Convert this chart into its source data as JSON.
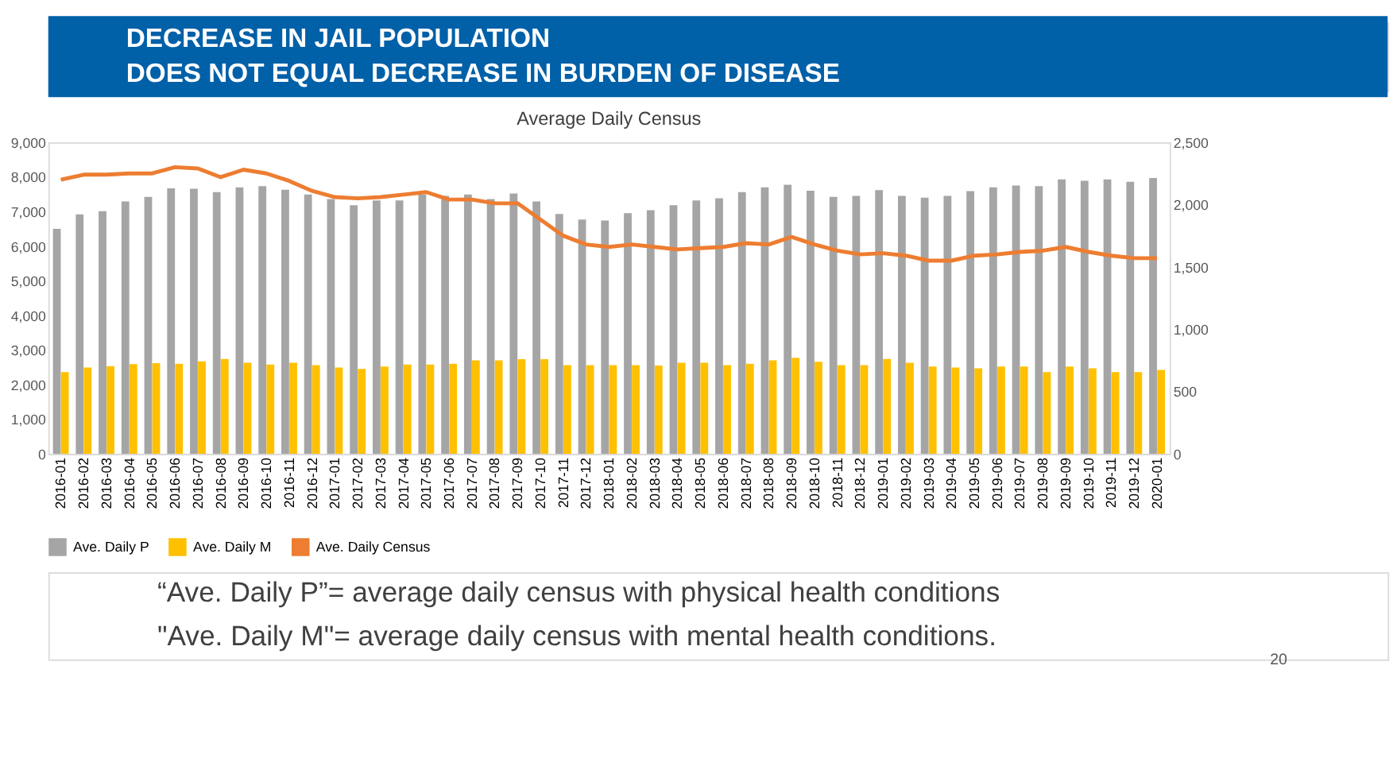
{
  "chart_data": {
    "type": "bar",
    "title": "DECREASE IN JAIL POPULATION\nDOES NOT EQUAL DECREASE IN BURDEN OF DISEASE",
    "subtitle": "Average Daily Census",
    "categories": [
      "2016-01",
      "2016-02",
      "2016-03",
      "2016-04",
      "2016-05",
      "2016-06",
      "2016-07",
      "2016-08",
      "2016-09",
      "2016-10",
      "2016-11",
      "2016-12",
      "2017-01",
      "2017-02",
      "2017-03",
      "2017-04",
      "2017-05",
      "2017-06",
      "2017-07",
      "2017-08",
      "2017-09",
      "2017-10",
      "2017-11",
      "2017-12",
      "2018-01",
      "2018-02",
      "2018-03",
      "2018-04",
      "2018-05",
      "2018-06",
      "2018-07",
      "2018-08",
      "2018-09",
      "2018-10",
      "2018-11",
      "2018-12",
      "2019-01",
      "2019-02",
      "2019-03",
      "2019-04",
      "2019-05",
      "2019-06",
      "2019-07",
      "2019-08",
      "2019-09",
      "2019-10",
      "2019-11",
      "2019-12",
      "2020-01"
    ],
    "series": [
      {
        "name": "Ave. Daily P",
        "type": "bar",
        "color": "#a5a5a5",
        "values": [
          6500,
          6920,
          7010,
          7290,
          7420,
          7670,
          7660,
          7560,
          7700,
          7730,
          7630,
          7490,
          7360,
          7180,
          7320,
          7320,
          7490,
          7450,
          7490,
          7360,
          7520,
          7290,
          6930,
          6770,
          6740,
          6950,
          7040,
          7180,
          7320,
          7380,
          7560,
          7700,
          7770,
          7600,
          7420,
          7450,
          7620,
          7450,
          7400,
          7450,
          7590,
          7700,
          7750,
          7730,
          7930,
          7890,
          7930,
          7860,
          7970
        ]
      },
      {
        "name": "Ave. Daily M",
        "type": "bar",
        "color": "#ffc000",
        "values": [
          2360,
          2490,
          2530,
          2590,
          2620,
          2600,
          2670,
          2740,
          2630,
          2580,
          2630,
          2560,
          2490,
          2450,
          2520,
          2580,
          2580,
          2600,
          2700,
          2700,
          2730,
          2730,
          2560,
          2560,
          2560,
          2560,
          2550,
          2630,
          2630,
          2560,
          2600,
          2700,
          2770,
          2660,
          2560,
          2560,
          2740,
          2630,
          2520,
          2490,
          2470,
          2520,
          2520,
          2360,
          2520,
          2470,
          2360,
          2360,
          2420
        ]
      },
      {
        "name": "Ave. Daily Census",
        "type": "line",
        "axis": "y2",
        "color": "#ed7d31",
        "values": [
          2200,
          2240,
          2240,
          2250,
          2250,
          2300,
          2290,
          2220,
          2280,
          2250,
          2190,
          2110,
          2060,
          2050,
          2060,
          2080,
          2100,
          2040,
          2040,
          2010,
          2010,
          1880,
          1750,
          1680,
          1660,
          1680,
          1660,
          1640,
          1650,
          1660,
          1690,
          1680,
          1740,
          1680,
          1630,
          1600,
          1610,
          1590,
          1550,
          1550,
          1590,
          1600,
          1620,
          1630,
          1660,
          1620,
          1590,
          1570,
          1570
        ]
      }
    ],
    "ylim": [
      0,
      9000
    ],
    "yticks": [
      0,
      {
        "value": 1000,
        "label": "1,000"
      },
      {
        "value": 2000,
        "label": "2,000"
      },
      {
        "value": 3000,
        "label": "3,000"
      },
      {
        "value": 4000,
        "label": "4,000"
      },
      {
        "value": 5000,
        "label": "5,000"
      },
      {
        "value": 6000,
        "label": "6,000"
      },
      {
        "value": 7000,
        "label": "7,000"
      },
      {
        "value": 8000,
        "label": "8,000"
      },
      {
        "value": 9000,
        "label": "9,000"
      }
    ],
    "y2lim": [
      0,
      2500
    ],
    "y2ticks": [
      0,
      500,
      {
        "value": 1000,
        "label": "1,000"
      },
      {
        "value": 1500,
        "label": "1,500"
      },
      {
        "value": 2000,
        "label": "2,000"
      },
      {
        "value": 2500,
        "label": "2,500"
      }
    ],
    "legend": "bottom",
    "annotations": [
      "“Ave. Daily P”= average daily census with physical health conditions",
      "\"Ave. Daily M\"= average daily census with mental health conditions.",
      "20"
    ]
  }
}
